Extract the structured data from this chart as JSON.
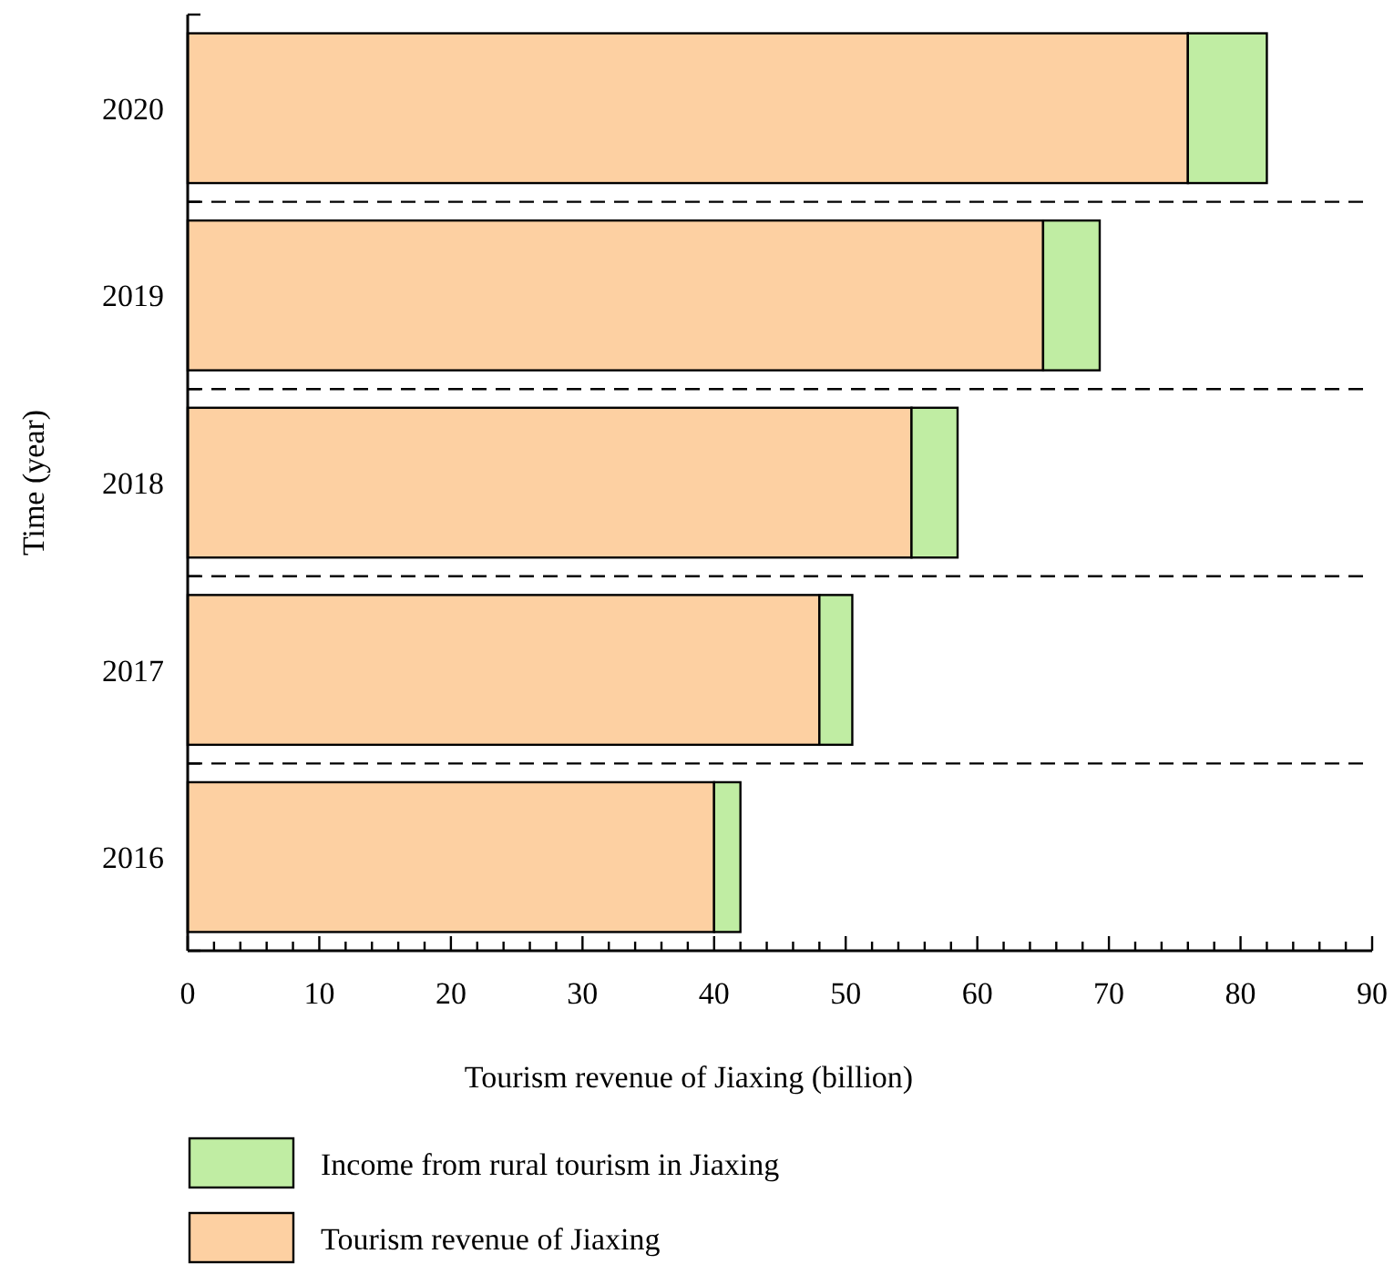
{
  "chart_data": {
    "type": "bar",
    "orientation": "horizontal",
    "stacked": true,
    "xlabel": "Tourism revenue of Jiaxing (billion)",
    "ylabel": "Time (year)",
    "categories": [
      "2020",
      "2019",
      "2018",
      "2017",
      "2016"
    ],
    "series": [
      {
        "name": "Tourism revenue of Jiaxing",
        "color": "#fdd0a2",
        "values": [
          76,
          65,
          55,
          48,
          40
        ]
      },
      {
        "name": "Income from rural tourism in Jiaxing",
        "color": "#c0eda3",
        "values": [
          6,
          4.3,
          3.5,
          2.5,
          2
        ]
      }
    ],
    "xlim": [
      0,
      90
    ],
    "xticks": [
      0,
      {
        "value": 2,
        "label": null
      },
      {
        "value": 4,
        "label": null
      },
      {
        "value": 6,
        "label": null
      },
      {
        "value": 8,
        "label": null
      },
      10,
      {
        "value": 12,
        "label": null
      },
      {
        "value": 14,
        "label": null
      },
      {
        "value": 16,
        "label": null
      },
      {
        "value": 18,
        "label": null
      },
      20,
      {
        "value": 22,
        "label": null
      },
      {
        "value": 24,
        "label": null
      },
      {
        "value": 26,
        "label": null
      },
      {
        "value": 28,
        "label": null
      },
      30,
      {
        "value": 32,
        "label": null
      },
      {
        "value": 34,
        "label": null
      },
      {
        "value": 36,
        "label": null
      },
      {
        "value": 38,
        "label": null
      },
      40,
      {
        "value": 42,
        "label": null
      },
      {
        "value": 44,
        "label": null
      },
      {
        "value": 46,
        "label": null
      },
      {
        "value": 48,
        "label": null
      },
      50,
      {
        "value": 52,
        "label": null
      },
      {
        "value": 54,
        "label": null
      },
      {
        "value": 56,
        "label": null
      },
      {
        "value": 58,
        "label": null
      },
      60,
      {
        "value": 62,
        "label": null
      },
      {
        "value": 64,
        "label": null
      },
      {
        "value": 66,
        "label": null
      },
      {
        "value": 68,
        "label": null
      },
      70,
      {
        "value": 72,
        "label": null
      },
      {
        "value": 74,
        "label": null
      },
      {
        "value": 76,
        "label": null
      },
      {
        "value": 78,
        "label": null
      },
      80,
      {
        "value": 82,
        "label": null
      },
      {
        "value": 84,
        "label": null
      },
      {
        "value": 86,
        "label": null
      },
      {
        "value": 88,
        "label": null
      },
      90
    ],
    "grid": "y",
    "line_style": "dashed",
    "legend": "bottom"
  }
}
